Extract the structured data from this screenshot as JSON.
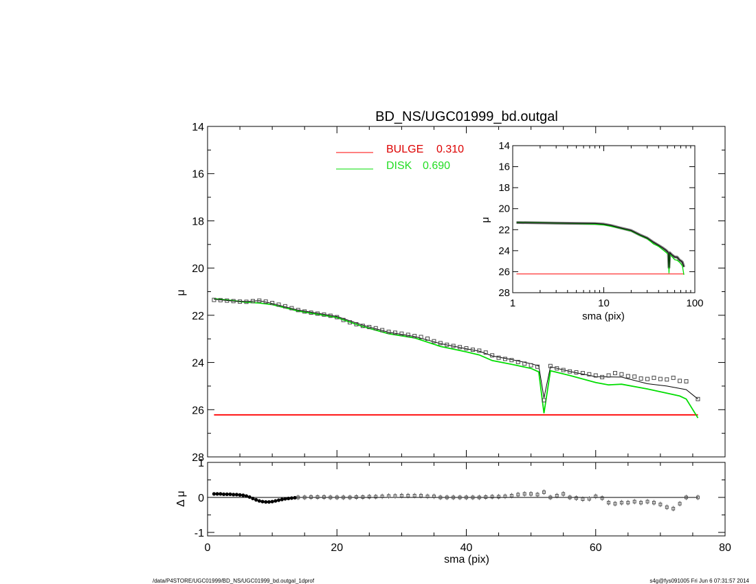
{
  "title": "BD_NS/UGC01999_bd.outgal",
  "footer": {
    "left": "/data/P4STORE/UGC01999/BD_NS/UGC01999_bd.outgal_1dprof",
    "right": "s4g@fys091005  Fri Jun  6 07:31:57 2014"
  },
  "colors": {
    "bulge": "#ff0000",
    "disk": "#00dd00",
    "total": "#000000",
    "data": "#555555"
  },
  "chart_data": [
    {
      "type": "line",
      "panel": "main",
      "xlabel": "",
      "ylabel": "μ",
      "xlim": [
        0,
        80
      ],
      "ylim": [
        28,
        14
      ],
      "x_ticks": [
        "0",
        "20",
        "40",
        "60",
        "80"
      ],
      "y_ticks": [
        "14",
        "16",
        "18",
        "20",
        "22",
        "24",
        "26",
        "28"
      ],
      "legend": [
        {
          "name": "BULGE",
          "value": "0.310",
          "color": "#ff0000"
        },
        {
          "name": "DISK",
          "value": "0.690",
          "color": "#00dd00"
        }
      ],
      "series": [
        {
          "name": "data",
          "style": "squares",
          "x": [
            1,
            2,
            3,
            4,
            5,
            6,
            7,
            8,
            9,
            10,
            11,
            12,
            13,
            14,
            15,
            16,
            17,
            18,
            19,
            20,
            21,
            22,
            23,
            24,
            25,
            26,
            27,
            28,
            29,
            30,
            31,
            32,
            33,
            34,
            35,
            36,
            37,
            38,
            39,
            40,
            41,
            42,
            43,
            44,
            45,
            46,
            47,
            48,
            49,
            50,
            51,
            52,
            53,
            54,
            55,
            56,
            57,
            58,
            59,
            60,
            61,
            62,
            63,
            64,
            65,
            66,
            67,
            68,
            69,
            70,
            71,
            72,
            73,
            74,
            75.8
          ],
          "y": [
            21.35,
            21.36,
            21.38,
            21.4,
            21.42,
            21.43,
            21.4,
            21.38,
            21.42,
            21.48,
            21.55,
            21.62,
            21.7,
            21.78,
            21.84,
            21.89,
            21.93,
            21.97,
            22.02,
            22.08,
            22.2,
            22.3,
            22.38,
            22.45,
            22.5,
            22.55,
            22.63,
            22.7,
            22.74,
            22.78,
            22.83,
            22.88,
            22.92,
            22.99,
            23.1,
            23.18,
            23.25,
            23.3,
            23.35,
            23.4,
            23.46,
            23.5,
            23.58,
            23.7,
            23.8,
            23.85,
            23.9,
            23.98,
            24.05,
            24.12,
            24.18,
            25.6,
            24.15,
            24.25,
            24.32,
            24.38,
            24.42,
            24.45,
            24.5,
            24.55,
            24.62,
            24.55,
            24.45,
            24.5,
            24.58,
            24.6,
            24.68,
            24.7,
            24.65,
            24.7,
            24.72,
            24.65,
            24.78,
            24.8,
            25.55
          ]
        },
        {
          "name": "total",
          "color": "#000000",
          "x": [
            1,
            4,
            6,
            8,
            10,
            14,
            20,
            24,
            28,
            32,
            36,
            40,
            42,
            44,
            47,
            50,
            51.2,
            52,
            53,
            56,
            60,
            64,
            68,
            71,
            73,
            74,
            75.8
          ],
          "y": [
            21.32,
            21.4,
            21.42,
            21.38,
            21.5,
            21.78,
            22.05,
            22.42,
            22.72,
            22.9,
            23.2,
            23.42,
            23.52,
            23.72,
            23.88,
            24.05,
            24.15,
            25.5,
            24.18,
            24.38,
            24.6,
            24.62,
            24.9,
            25.0,
            25.1,
            25.15,
            25.55
          ]
        },
        {
          "name": "disk",
          "color": "#00dd00",
          "x": [
            1,
            4,
            6,
            8,
            10,
            14,
            20,
            24,
            28,
            32,
            36,
            40,
            42,
            44,
            47,
            50,
            51.2,
            52,
            53,
            56,
            60,
            62,
            64,
            68,
            71,
            73,
            74,
            75.8
          ],
          "y": [
            21.3,
            21.38,
            21.45,
            21.48,
            21.55,
            21.82,
            22.1,
            22.48,
            22.78,
            22.96,
            23.32,
            23.55,
            23.68,
            23.92,
            24.08,
            24.25,
            24.4,
            26.15,
            24.35,
            24.55,
            24.85,
            24.95,
            24.92,
            25.12,
            25.3,
            25.42,
            25.55,
            26.35
          ]
        },
        {
          "name": "bulge",
          "color": "#ff0000",
          "x": [
            1,
            75.8
          ],
          "y": [
            26.22,
            26.22
          ]
        }
      ]
    },
    {
      "type": "scatter",
      "panel": "residual",
      "xlabel": "sma (pix)",
      "ylabel": "Δ μ",
      "xlim": [
        0,
        80
      ],
      "ylim": [
        -1.1,
        1.0
      ],
      "x_ticks": [
        "0",
        "20",
        "40",
        "60",
        "80"
      ],
      "y_ticks": [
        "1",
        "0",
        "-1"
      ],
      "series": [
        {
          "name": "residual",
          "x": [
            1,
            1.5,
            2,
            2.5,
            3,
            3.5,
            4,
            4.5,
            5,
            5.5,
            6,
            6.5,
            7,
            7.5,
            8,
            8.5,
            9,
            9.5,
            10,
            10.5,
            11,
            11.5,
            12,
            12.5,
            13,
            13.5,
            14,
            15,
            16,
            17,
            18,
            19,
            20,
            21,
            22,
            23,
            24,
            25,
            26,
            27,
            28,
            29,
            30,
            31,
            32,
            33,
            34,
            35,
            36,
            37,
            38,
            39,
            40,
            41,
            42,
            43,
            44,
            45,
            46,
            47,
            48,
            49,
            50,
            51,
            52,
            53,
            54,
            55,
            56,
            57,
            58,
            59,
            60,
            61,
            62,
            63,
            64,
            65,
            66,
            67,
            68,
            69,
            70,
            71,
            72,
            73,
            74,
            75.8
          ],
          "y": [
            0.1,
            0.1,
            0.1,
            0.09,
            0.09,
            0.09,
            0.08,
            0.08,
            0.07,
            0.06,
            0.04,
            0.01,
            -0.03,
            -0.07,
            -0.1,
            -0.12,
            -0.13,
            -0.13,
            -0.12,
            -0.1,
            -0.08,
            -0.06,
            -0.04,
            -0.03,
            -0.02,
            -0.01,
            0.0,
            0.0,
            0.01,
            0.01,
            0.01,
            0.0,
            0.0,
            0.0,
            0.0,
            0.01,
            0.01,
            0.02,
            0.02,
            0.03,
            0.04,
            0.04,
            0.05,
            0.05,
            0.05,
            0.05,
            0.03,
            0.03,
            0.0,
            0.0,
            0.0,
            0.0,
            0.0,
            0.0,
            0.0,
            0.01,
            0.02,
            0.02,
            0.03,
            0.05,
            0.08,
            0.1,
            0.1,
            0.08,
            0.15,
            0.0,
            0.05,
            0.1,
            0.0,
            -0.02,
            -0.05,
            -0.04,
            0.03,
            -0.02,
            -0.15,
            -0.18,
            -0.15,
            -0.15,
            -0.12,
            -0.15,
            -0.12,
            -0.15,
            -0.2,
            -0.28,
            -0.32,
            -0.18,
            0.0,
            0.0
          ]
        }
      ]
    },
    {
      "type": "line",
      "panel": "inset",
      "xlabel": "sma (pix)",
      "ylabel": "μ",
      "xscale": "log",
      "xlim": [
        1,
        100
      ],
      "ylim": [
        28,
        14
      ],
      "x_ticks": [
        "1",
        "10",
        "100"
      ],
      "y_ticks": [
        "14",
        "16",
        "18",
        "20",
        "22",
        "24",
        "26",
        "28"
      ],
      "series": [
        {
          "name": "total",
          "color": "#000000",
          "x": [
            1.1,
            2,
            3,
            5,
            8,
            10,
            12,
            15,
            20,
            25,
            30,
            35,
            40,
            45,
            48,
            50,
            51.2,
            52,
            53,
            56,
            60,
            64,
            68,
            71,
            73,
            75.8
          ],
          "y": [
            21.32,
            21.35,
            21.38,
            21.4,
            21.42,
            21.48,
            21.6,
            21.82,
            22.08,
            22.5,
            22.8,
            23.2,
            23.5,
            23.78,
            23.95,
            24.1,
            24.2,
            25.6,
            24.2,
            24.4,
            24.6,
            24.62,
            24.9,
            25.0,
            25.1,
            25.55
          ]
        },
        {
          "name": "disk",
          "color": "#00dd00",
          "x": [
            1.1,
            2,
            3,
            5,
            8,
            10,
            12,
            15,
            20,
            25,
            30,
            35,
            40,
            45,
            48,
            50,
            51.2,
            52,
            53,
            56,
            60,
            64,
            68,
            71,
            73,
            75.8
          ],
          "y": [
            21.3,
            21.34,
            21.37,
            21.42,
            21.48,
            21.55,
            21.68,
            21.85,
            22.12,
            22.55,
            22.85,
            23.35,
            23.6,
            23.95,
            24.15,
            24.28,
            24.4,
            26.15,
            24.35,
            24.55,
            24.85,
            24.92,
            25.1,
            25.3,
            25.45,
            26.3
          ]
        },
        {
          "name": "bulge",
          "color": "#ff0000",
          "x": [
            1.1,
            75.8
          ],
          "y": [
            26.22,
            26.22
          ]
        }
      ]
    }
  ]
}
